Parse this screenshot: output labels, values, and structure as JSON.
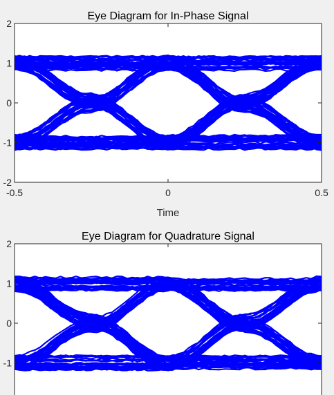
{
  "chart_data": [
    {
      "type": "line",
      "title": "Eye Diagram for In-Phase Signal",
      "xlabel": "Time",
      "ylabel": "",
      "xlim": [
        -0.5,
        0.5
      ],
      "ylim": [
        -2,
        2
      ],
      "xticks": [
        -0.5,
        0,
        0.5
      ],
      "xtick_labels": [
        "-0.5",
        "0",
        "0.5"
      ],
      "yticks": [
        -2,
        -1,
        0,
        1,
        2
      ],
      "ytick_labels": [
        "-2",
        "-1",
        "0",
        "1",
        "2"
      ],
      "grid": false,
      "series_color": "#0000ff",
      "description_values": {
        "levels": [
          1,
          -1
        ],
        "level_spread": 0.25,
        "crossings_x": [
          -0.25,
          0.25
        ],
        "sample_point_x": 0
      },
      "series": [
        {
          "name": "",
          "x": [
            -0.5,
            -0.25,
            0,
            0.25,
            0.5
          ],
          "y": [
            1,
            1,
            1,
            1,
            1
          ]
        },
        {
          "name": "",
          "x": [
            -0.5,
            -0.25,
            0,
            0.25,
            0.5
          ],
          "y": [
            1,
            1,
            1,
            -0.05,
            -1
          ]
        },
        {
          "name": "",
          "x": [
            -0.5,
            -0.25,
            0,
            0.25,
            0.5
          ],
          "y": [
            1,
            0.05,
            -1,
            -1,
            -1
          ]
        },
        {
          "name": "",
          "x": [
            -0.5,
            -0.25,
            0,
            0.25,
            0.5
          ],
          "y": [
            1,
            0.05,
            -1,
            0.05,
            1
          ]
        },
        {
          "name": "",
          "x": [
            -0.5,
            -0.25,
            0,
            0.25,
            0.5
          ],
          "y": [
            -1,
            -0.05,
            1,
            1,
            1
          ]
        },
        {
          "name": "",
          "x": [
            -0.5,
            -0.25,
            0,
            0.25,
            0.5
          ],
          "y": [
            -1,
            -0.05,
            1,
            -0.05,
            -1
          ]
        },
        {
          "name": "",
          "x": [
            -0.5,
            -0.25,
            0,
            0.25,
            0.5
          ],
          "y": [
            -1,
            -1,
            -1,
            0.05,
            1
          ]
        },
        {
          "name": "",
          "x": [
            -0.5,
            -0.25,
            0,
            0.25,
            0.5
          ],
          "y": [
            -1,
            -1,
            -1,
            -1,
            -1
          ]
        }
      ]
    },
    {
      "type": "line",
      "title": "Eye Diagram for Quadrature Signal",
      "xlabel": "",
      "ylabel": "",
      "xlim": [
        -0.5,
        0.5
      ],
      "ylim": [
        -2,
        2
      ],
      "xticks": [
        -0.5,
        0,
        0.5
      ],
      "xtick_labels": [
        "",
        "",
        ""
      ],
      "yticks": [
        -1,
        0,
        1,
        2
      ],
      "ytick_labels": [
        "-1",
        "0",
        "1",
        "2"
      ],
      "grid": false,
      "series_color": "#0000ff",
      "description_values": {
        "levels": [
          1,
          -1
        ],
        "level_spread": 0.25,
        "crossings_x": [
          -0.25,
          0.25
        ],
        "sample_point_x": 0
      },
      "series": [
        {
          "name": "",
          "x": [
            -0.5,
            -0.25,
            0,
            0.25,
            0.5
          ],
          "y": [
            1,
            1,
            1,
            1,
            1
          ]
        },
        {
          "name": "",
          "x": [
            -0.5,
            -0.25,
            0,
            0.25,
            0.5
          ],
          "y": [
            1,
            1,
            1,
            -0.05,
            -1
          ]
        },
        {
          "name": "",
          "x": [
            -0.5,
            -0.25,
            0,
            0.25,
            0.5
          ],
          "y": [
            1,
            0.05,
            -1,
            -1,
            -1
          ]
        },
        {
          "name": "",
          "x": [
            -0.5,
            -0.25,
            0,
            0.25,
            0.5
          ],
          "y": [
            1,
            0.05,
            -1,
            0.05,
            1
          ]
        },
        {
          "name": "",
          "x": [
            -0.5,
            -0.25,
            0,
            0.25,
            0.5
          ],
          "y": [
            -1,
            -0.05,
            1,
            1,
            1
          ]
        },
        {
          "name": "",
          "x": [
            -0.5,
            -0.25,
            0,
            0.25,
            0.5
          ],
          "y": [
            -1,
            -0.05,
            1,
            -0.05,
            -1
          ]
        },
        {
          "name": "",
          "x": [
            -0.5,
            -0.25,
            0,
            0.25,
            0.5
          ],
          "y": [
            -1,
            -1,
            -1,
            0.05,
            1
          ]
        },
        {
          "name": "",
          "x": [
            -0.5,
            -0.25,
            0,
            0.25,
            0.5
          ],
          "y": [
            -1,
            -1,
            -1,
            -1,
            -1
          ]
        }
      ]
    }
  ]
}
